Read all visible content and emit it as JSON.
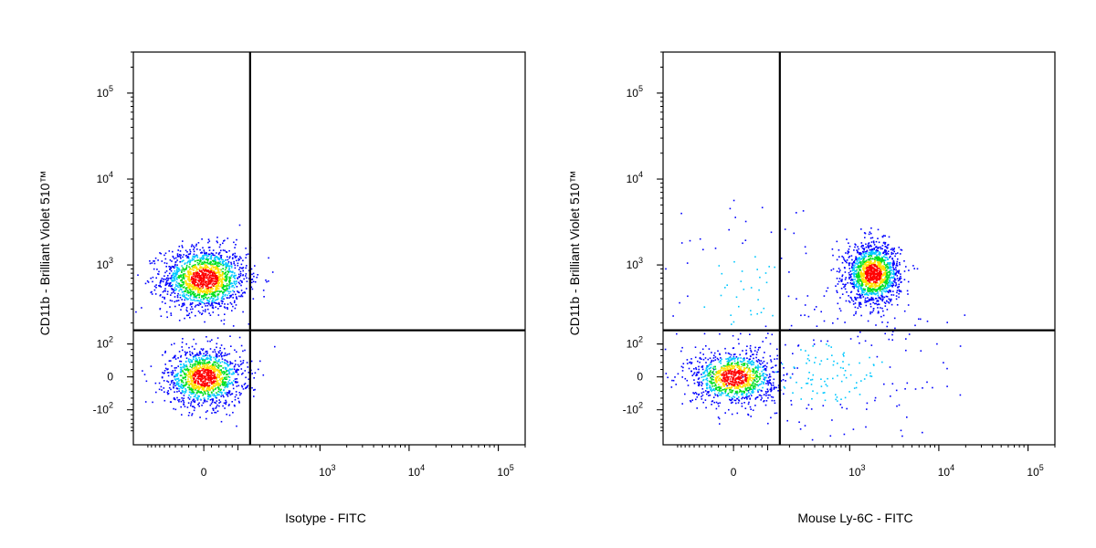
{
  "colors": {
    "frame": "#000000",
    "gate": "#000000",
    "density_low": "#0000ff",
    "density_mid_low": "#00c8ff",
    "density_mid": "#00e020",
    "density_mid_high": "#ffe000",
    "density_high": "#ff0000"
  },
  "chart_data": [
    {
      "type": "scatter",
      "scatter_style": "density dot plot (pseudocolor)",
      "title": "",
      "xlabel": "Isotype - FITC",
      "ylabel": "CD11b - Brilliant Violet 510™",
      "x_scale": "biexponential",
      "y_scale": "biexponential",
      "xlim": [
        -300,
        200000
      ],
      "ylim": [
        -300,
        300000
      ],
      "x_ticks": [
        {
          "value": 0,
          "base": "0",
          "exp": ""
        },
        {
          "value": 1000,
          "base": "10",
          "exp": "3"
        },
        {
          "value": 10000,
          "base": "10",
          "exp": "4"
        },
        {
          "value": 100000,
          "base": "10",
          "exp": "5"
        }
      ],
      "y_ticks": [
        {
          "value": -100,
          "base": "-10",
          "exp": "2"
        },
        {
          "value": 0,
          "base": "0",
          "exp": ""
        },
        {
          "value": 100,
          "base": "10",
          "exp": "2"
        },
        {
          "value": 1000,
          "base": "10",
          "exp": "3"
        },
        {
          "value": 10000,
          "base": "10",
          "exp": "4"
        },
        {
          "value": 100000,
          "base": "10",
          "exp": "5"
        }
      ],
      "quadrant_gate": {
        "x": 150,
        "y": 160
      },
      "populations": [
        {
          "center": [
            0,
            700
          ],
          "count": 1600,
          "spread": [
            0.55,
            0.42
          ]
        },
        {
          "center": [
            0,
            0
          ],
          "count": 1300,
          "spread": [
            0.5,
            0.38
          ]
        }
      ]
    },
    {
      "type": "scatter",
      "scatter_style": "density dot plot (pseudocolor)",
      "title": "",
      "xlabel": "Mouse Ly-6C - FITC",
      "ylabel": "CD11b - Brilliant Violet 510™",
      "x_scale": "biexponential",
      "y_scale": "biexponential",
      "xlim": [
        -300,
        200000
      ],
      "ylim": [
        -300,
        300000
      ],
      "x_ticks": [
        {
          "value": 0,
          "base": "0",
          "exp": ""
        },
        {
          "value": 1000,
          "base": "10",
          "exp": "3"
        },
        {
          "value": 10000,
          "base": "10",
          "exp": "4"
        },
        {
          "value": 100000,
          "base": "10",
          "exp": "5"
        }
      ],
      "y_ticks": [
        {
          "value": -100,
          "base": "-10",
          "exp": "2"
        },
        {
          "value": 0,
          "base": "0",
          "exp": ""
        },
        {
          "value": 100,
          "base": "10",
          "exp": "2"
        },
        {
          "value": 1000,
          "base": "10",
          "exp": "3"
        },
        {
          "value": 10000,
          "base": "10",
          "exp": "4"
        },
        {
          "value": 100000,
          "base": "10",
          "exp": "5"
        }
      ],
      "quadrant_gate": {
        "x": 150,
        "y": 160
      },
      "populations": [
        {
          "center": [
            1800,
            800
          ],
          "count": 1500,
          "spread": [
            0.35,
            0.4
          ]
        },
        {
          "center": [
            0,
            0
          ],
          "count": 1100,
          "spread": [
            0.55,
            0.35
          ]
        },
        {
          "center": [
            600,
            10
          ],
          "count": 220,
          "spread": [
            1.6,
            0.9
          ]
        },
        {
          "center": [
            20,
            500
          ],
          "count": 90,
          "spread": [
            1.2,
            1.2
          ]
        }
      ]
    }
  ]
}
